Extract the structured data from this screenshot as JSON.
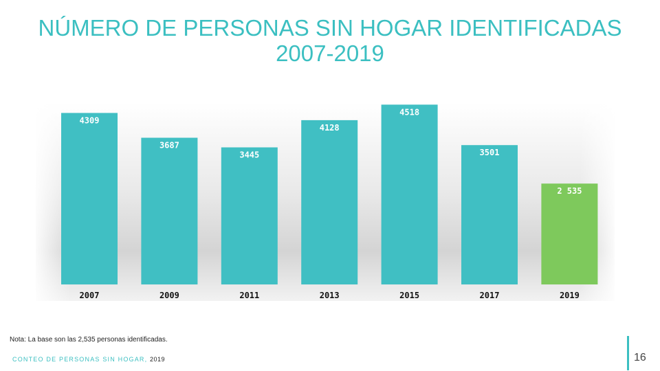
{
  "title": {
    "line1": "NÚMERO DE PERSONAS SIN HOGAR IDENTIFICADAS",
    "line2": "2007-2019"
  },
  "colors": {
    "teal": "#40bfc3",
    "green": "#7ec95c",
    "accent": "#3bbfc1"
  },
  "chart_data": {
    "type": "bar",
    "title": "NÚMERO DE PERSONAS SIN HOGAR IDENTIFICADAS 2007-2019",
    "xlabel": "",
    "ylabel": "",
    "categories": [
      "2007",
      "2009",
      "2011",
      "2013",
      "2015",
      "2017",
      "2019"
    ],
    "values": [
      4309,
      3687,
      3445,
      4128,
      4518,
      3501,
      2535
    ],
    "data_labels": [
      "4309",
      "3687",
      "3445",
      "4128",
      "4518",
      "3501",
      "2 535"
    ],
    "ylim": [
      0,
      4800
    ],
    "grid": false,
    "highlight_category": "2019"
  },
  "note": "Nota: La base son las 2,535 personas identificadas.",
  "footer": {
    "source": "CONTEO DE PERSONAS SIN HOGAR",
    "year": "2019"
  },
  "page_number": "16"
}
